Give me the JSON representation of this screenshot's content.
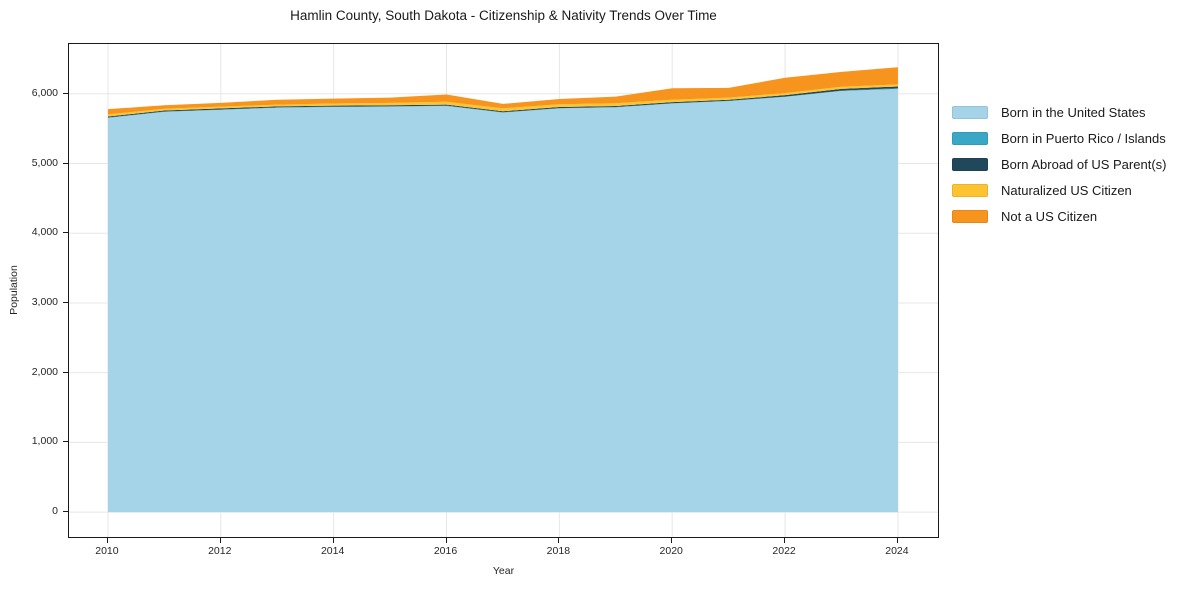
{
  "page": {
    "title": "Hamlin County, South Dakota - Citizenship & Nativity Trends Over Time"
  },
  "chart_data": {
    "type": "area",
    "stacked": true,
    "title": "Hamlin County, South Dakota - Citizenship & Nativity Trends Over Time",
    "xlabel": "Year",
    "ylabel": "Population",
    "grid": true,
    "legend_position": "right-outside",
    "x": [
      2010,
      2011,
      2012,
      2013,
      2014,
      2015,
      2016,
      2017,
      2018,
      2019,
      2020,
      2021,
      2022,
      2023,
      2024
    ],
    "series": [
      {
        "name": "Born in the United States",
        "color": "#a5d3e8",
        "values": [
          5655,
          5740,
          5770,
          5800,
          5810,
          5815,
          5825,
          5730,
          5790,
          5805,
          5860,
          5895,
          5955,
          6040,
          6070
        ]
      },
      {
        "name": "Born in Puerto Rico / Islands",
        "color": "#3aa7c6",
        "values": [
          5,
          5,
          5,
          5,
          5,
          5,
          5,
          5,
          5,
          5,
          5,
          5,
          5,
          5,
          10
        ]
      },
      {
        "name": "Born Abroad of US Parent(s)",
        "color": "#20475a",
        "values": [
          15,
          15,
          15,
          15,
          15,
          15,
          15,
          15,
          15,
          15,
          15,
          15,
          20,
          25,
          25
        ]
      },
      {
        "name": "Naturalized US Citizen",
        "color": "#fdc331",
        "values": [
          30,
          25,
          25,
          25,
          30,
          35,
          40,
          40,
          40,
          40,
          35,
          30,
          30,
          30,
          30
        ]
      },
      {
        "name": "Not a US Citizen",
        "color": "#f7941d",
        "values": [
          75,
          50,
          55,
          70,
          70,
          75,
          105,
          65,
          75,
          95,
          165,
          140,
          220,
          215,
          245
        ]
      }
    ],
    "stack_totals": [
      5780,
      5835,
      5870,
      5915,
      5930,
      5945,
      5990,
      5855,
      5925,
      5960,
      6080,
      6085,
      6230,
      6315,
      6380
    ],
    "xlim": [
      2009.31,
      2024.71
    ],
    "ylim": [
      -357,
      6714
    ],
    "x_ticks": [
      2010,
      2012,
      2014,
      2016,
      2018,
      2020,
      2022,
      2024
    ],
    "x_tick_labels": [
      "2010",
      "2012",
      "2014",
      "2016",
      "2018",
      "2020",
      "2022",
      "2024"
    ],
    "y_ticks": [
      0,
      1000,
      2000,
      3000,
      4000,
      5000,
      6000
    ],
    "y_tick_labels": [
      "0",
      "1,000",
      "2,000",
      "3,000",
      "4,000",
      "5,000",
      "6,000"
    ],
    "colors": {
      "grid": "#e7e7e7",
      "axis": "#1a1a1a",
      "background": "#ffffff"
    }
  }
}
